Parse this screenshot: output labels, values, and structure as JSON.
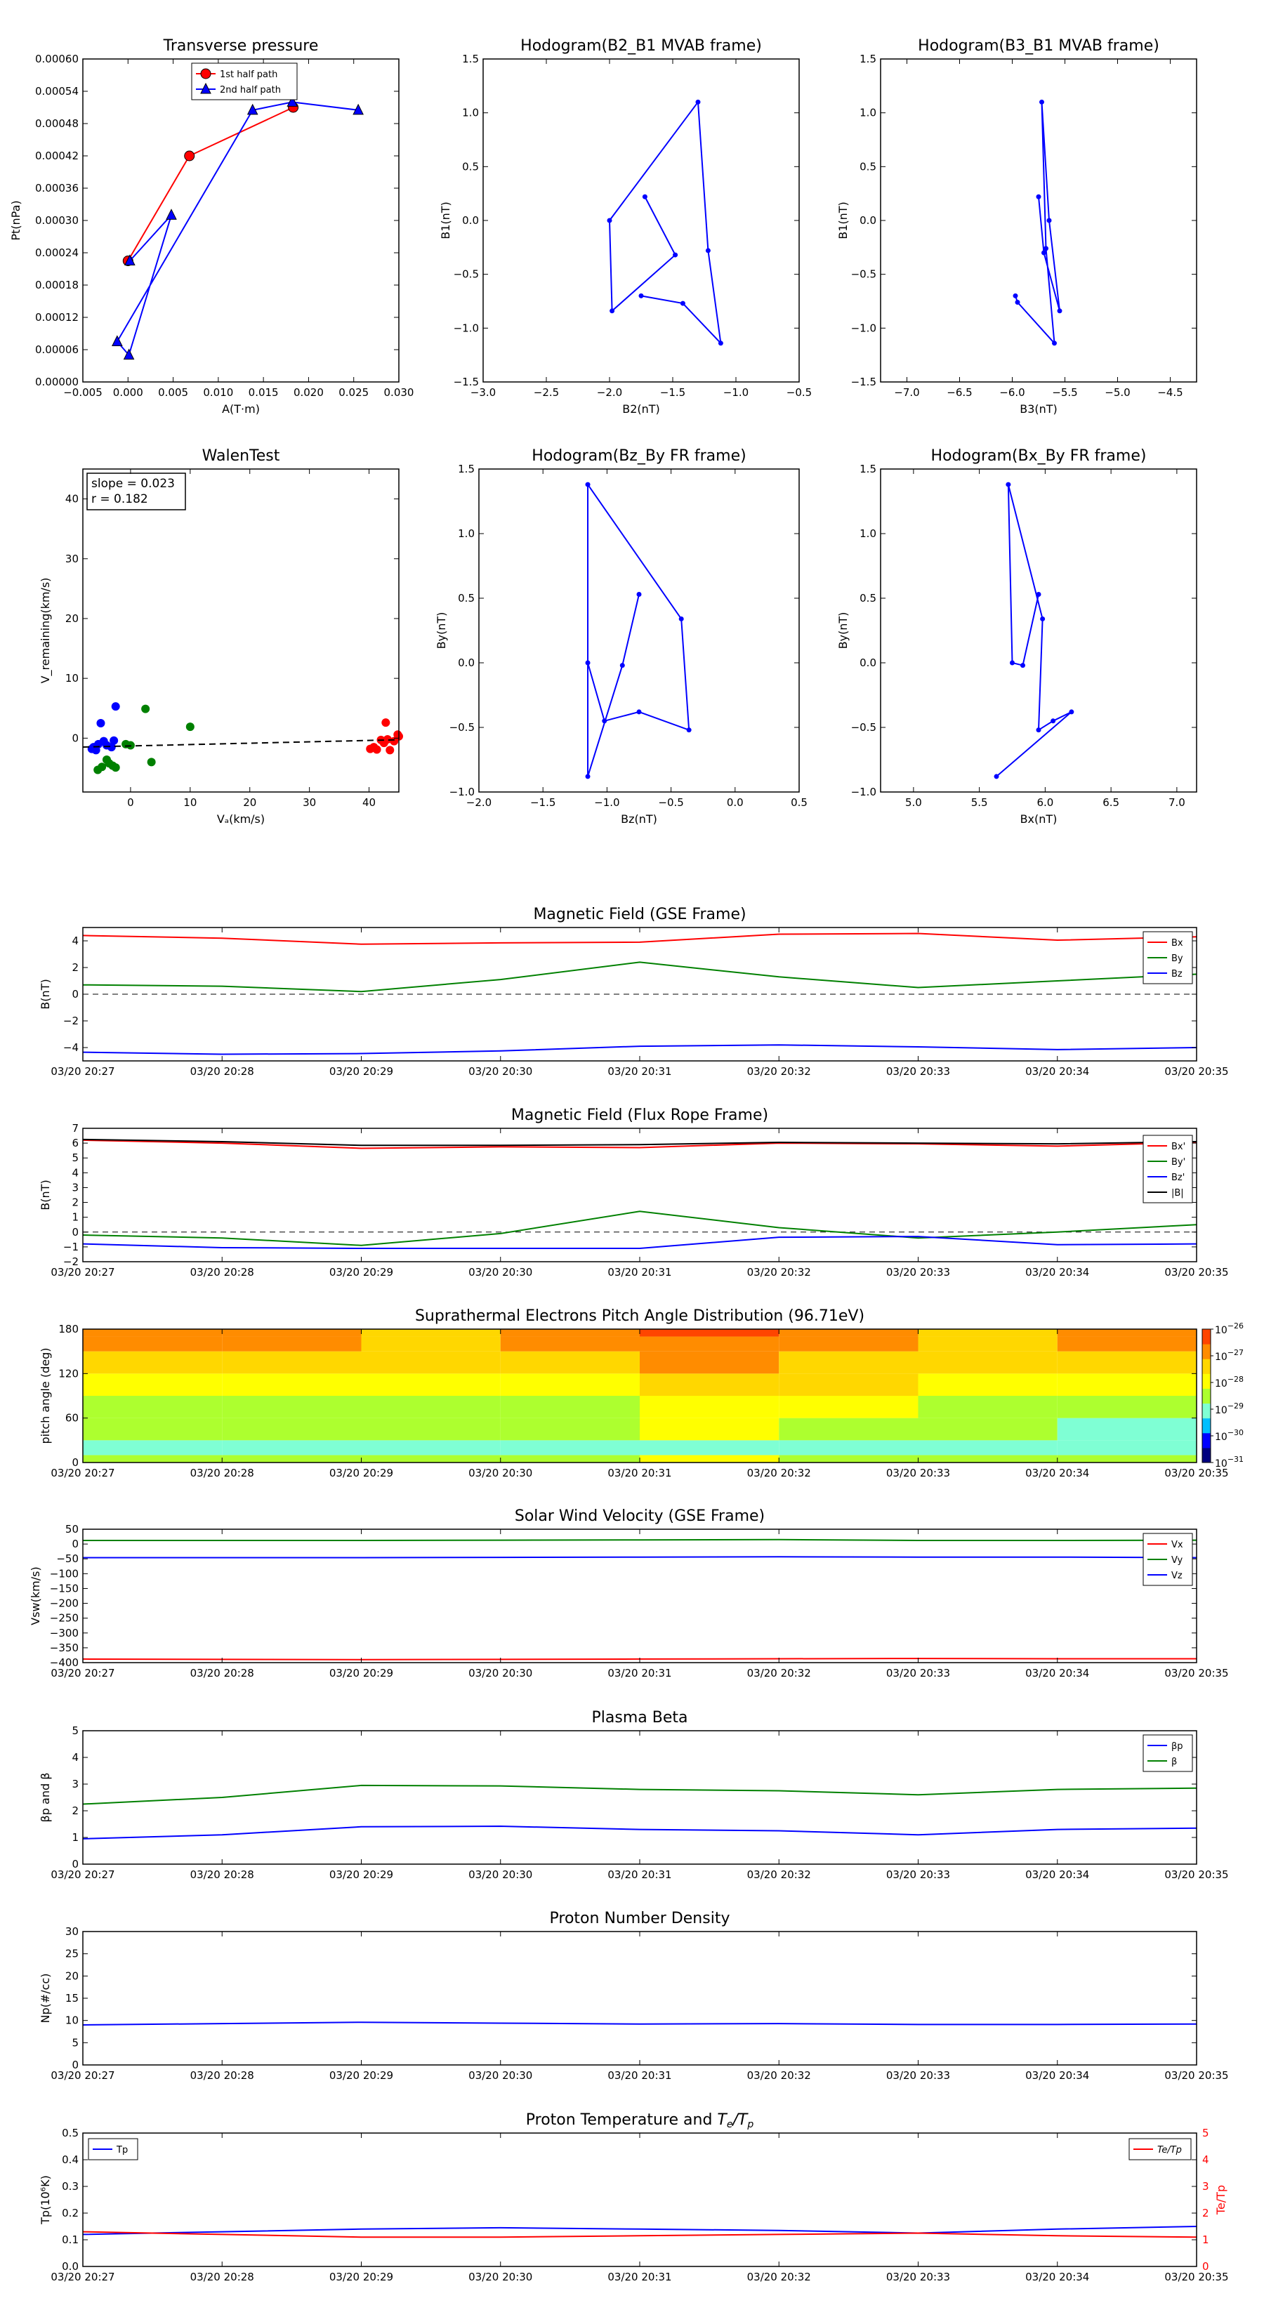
{
  "time_ticks": [
    "03/20 20:27",
    "03/20 20:28",
    "03/20 20:29",
    "03/20 20:30",
    "03/20 20:31",
    "03/20 20:32",
    "03/20 20:33",
    "03/20 20:34",
    "03/20 20:35"
  ],
  "chart_data": [
    {
      "id": "transverse-pressure",
      "type": "line",
      "title": "Transverse pressure",
      "xlabel": "A(T·m)",
      "ylabel": "Pt(nPa)",
      "xlim": [
        -0.005,
        0.03
      ],
      "ylim": [
        0,
        0.0006
      ],
      "xticks": [
        -0.005,
        0,
        0.005,
        0.01,
        0.015,
        0.02,
        0.025,
        0.03
      ],
      "xtick_labels": [
        "−0.005",
        "0.000",
        "0.005",
        "0.010",
        "0.015",
        "0.020",
        "0.025",
        "0.030"
      ],
      "yticks": [
        0,
        6e-05,
        0.00012,
        0.00018,
        0.00024,
        0.0003,
        0.00036,
        0.00042,
        0.00048,
        0.00054,
        0.0006
      ],
      "ytick_labels": [
        "0.00000",
        "0.00006",
        "0.00012",
        "0.00018",
        "0.00024",
        "0.00030",
        "0.00036",
        "0.00042",
        "0.00048",
        "0.00054",
        "0.00060"
      ],
      "legend": "top-center",
      "series": [
        {
          "name": "1st half path",
          "color": "#ff0000",
          "marker": "circle",
          "x": [
            0.0,
            0.0068,
            0.0183
          ],
          "y": [
            0.000225,
            0.00042,
            0.00051
          ]
        },
        {
          "name": "2nd half path",
          "color": "#0000ff",
          "marker": "triangle",
          "x": [
            0.0255,
            0.0182,
            0.0138,
            -0.0012,
            0.0001,
            0.0048,
            0.0002
          ],
          "y": [
            0.000505,
            0.00052,
            0.000505,
            7.5e-05,
            5e-05,
            0.00031,
            0.000225
          ]
        }
      ]
    },
    {
      "id": "hodogram-b2-b1",
      "type": "line",
      "title": "Hodogram(B2_B1 MVAB frame)",
      "xlabel": "B2(nT)",
      "ylabel": "B1(nT)",
      "xlim": [
        -3.0,
        -0.5
      ],
      "ylim": [
        -1.5,
        1.5
      ],
      "xticks": [
        -3.0,
        -2.5,
        -2.0,
        -1.5,
        -1.0,
        -0.5
      ],
      "xtick_labels": [
        "−3.0",
        "−2.5",
        "−2.0",
        "−1.5",
        "−1.0",
        "−0.5"
      ],
      "yticks": [
        -1.5,
        -1.0,
        -0.5,
        0.0,
        0.5,
        1.0,
        1.5
      ],
      "ytick_labels": [
        "−1.5",
        "−1.0",
        "−0.5",
        "0.0",
        "0.5",
        "1.0",
        "1.5"
      ],
      "series": [
        {
          "color": "#0000ff",
          "marker": "dot",
          "x": [
            -1.72,
            -1.48,
            -1.98,
            -2.0,
            -1.3,
            -1.22,
            -1.12,
            -1.42,
            -1.75
          ],
          "y": [
            0.22,
            -0.32,
            -0.84,
            0.0,
            1.1,
            -0.28,
            -1.14,
            -0.77,
            -0.7
          ]
        }
      ]
    },
    {
      "id": "hodogram-b3-b1",
      "type": "line",
      "title": "Hodogram(B3_B1 MVAB frame)",
      "xlabel": "B3(nT)",
      "ylabel": "B1(nT)",
      "xlim": [
        -7.25,
        -4.25
      ],
      "ylim": [
        -1.5,
        1.5
      ],
      "xticks": [
        -7.0,
        -6.5,
        -6.0,
        -5.5,
        -5.0,
        -4.5
      ],
      "xtick_labels": [
        "−7.0",
        "−6.5",
        "−6.0",
        "−5.5",
        "−5.0",
        "−4.5"
      ],
      "yticks": [
        -1.5,
        -1.0,
        -0.5,
        0.0,
        0.5,
        1.0,
        1.5
      ],
      "ytick_labels": [
        "−1.5",
        "−1.0",
        "−0.5",
        "0.0",
        "0.5",
        "1.0",
        "1.5"
      ],
      "series": [
        {
          "color": "#0000ff",
          "marker": "dot",
          "x": [
            -5.75,
            -5.7,
            -5.55,
            -5.65,
            -5.72,
            -5.68,
            -5.6,
            -5.95,
            -5.97
          ],
          "y": [
            0.22,
            -0.3,
            -0.84,
            0.0,
            1.1,
            -0.26,
            -1.14,
            -0.76,
            -0.7
          ]
        }
      ]
    },
    {
      "id": "walen-test",
      "type": "scatter",
      "title": "WalenTest",
      "xlabel": "Vₐ(km/s)",
      "ylabel": "V_remaining(km/s)",
      "xlim": [
        -8,
        45
      ],
      "ylim": [
        -9,
        45
      ],
      "xticks": [
        0,
        10,
        20,
        30,
        40
      ],
      "xtick_labels": [
        "0",
        "10",
        "20",
        "30",
        "40"
      ],
      "yticks": [
        0,
        10,
        20,
        30,
        40
      ],
      "ytick_labels": [
        "0",
        "10",
        "20",
        "30",
        "40"
      ],
      "annotation": [
        "slope = 0.023",
        "r = 0.182"
      ],
      "fit": {
        "slope": 0.023,
        "intercept": -1.3
      },
      "series": [
        {
          "color": "#0000ff",
          "x": [
            -6.5,
            -6.2,
            -5.8,
            -5.4,
            -5.0,
            -4.5,
            -4.0,
            -3.2,
            -2.8,
            -2.5
          ],
          "y": [
            -1.8,
            -1.5,
            -2.0,
            -1.0,
            2.5,
            -0.5,
            -1.2,
            -1.5,
            -0.4,
            5.3
          ]
        },
        {
          "color": "#008000",
          "x": [
            -5.5,
            -4.8,
            -4.0,
            -3.6,
            -3.0,
            -2.5,
            -0.8,
            0.0,
            2.5,
            3.5,
            10.0
          ],
          "y": [
            -5.3,
            -4.8,
            -3.6,
            -4.2,
            -4.6,
            -4.9,
            -1.0,
            -1.2,
            4.9,
            -4.0,
            1.9
          ]
        },
        {
          "color": "#ff0000",
          "x": [
            40.2,
            40.8,
            41.3,
            42.0,
            42.5,
            42.8,
            43.1,
            43.5,
            44.2,
            44.8,
            45.0
          ],
          "y": [
            -1.8,
            -1.5,
            -1.9,
            -0.3,
            -0.8,
            2.6,
            -0.2,
            -2.0,
            -0.5,
            0.6,
            0.3
          ]
        }
      ]
    },
    {
      "id": "hodogram-bz-by",
      "type": "line",
      "title": "Hodogram(Bz_By FR frame)",
      "xlabel": "Bz(nT)",
      "ylabel": "By(nT)",
      "xlim": [
        -2.0,
        0.5
      ],
      "ylim": [
        -1.0,
        1.5
      ],
      "xticks": [
        -2.0,
        -1.5,
        -1.0,
        -0.5,
        0.0,
        0.5
      ],
      "xtick_labels": [
        "−2.0",
        "−1.5",
        "−1.0",
        "−0.5",
        "0.0",
        "0.5"
      ],
      "yticks": [
        -1.0,
        -0.5,
        0.0,
        0.5,
        1.0,
        1.5
      ],
      "ytick_labels": [
        "−1.0",
        "−0.5",
        "0.0",
        "0.5",
        "1.0",
        "1.5"
      ],
      "series": [
        {
          "color": "#0000ff",
          "marker": "dot",
          "x": [
            -0.75,
            -0.88,
            -1.15,
            -1.15,
            -0.42,
            -0.36,
            -0.75,
            -1.02,
            -1.15
          ],
          "y": [
            0.53,
            -0.02,
            -0.88,
            1.38,
            0.34,
            -0.52,
            -0.38,
            -0.45,
            0.0
          ]
        }
      ]
    },
    {
      "id": "hodogram-bx-by",
      "type": "line",
      "title": "Hodogram(Bx_By FR frame)",
      "xlabel": "Bx(nT)",
      "ylabel": "By(nT)",
      "xlim": [
        4.75,
        7.15
      ],
      "ylim": [
        -1.0,
        1.5
      ],
      "xticks": [
        5.0,
        5.5,
        6.0,
        6.5,
        7.0
      ],
      "xtick_labels": [
        "5.0",
        "5.5",
        "6.0",
        "6.5",
        "7.0"
      ],
      "yticks": [
        -1.0,
        -0.5,
        0.0,
        0.5,
        1.0,
        1.5
      ],
      "ytick_labels": [
        "−1.0",
        "−0.5",
        "0.0",
        "0.5",
        "1.0",
        "1.5"
      ],
      "series": [
        {
          "color": "#0000ff",
          "marker": "dot",
          "x": [
            5.95,
            5.83,
            5.75,
            5.72,
            5.98,
            5.95,
            6.06,
            6.2,
            5.63
          ],
          "y": [
            0.53,
            -0.02,
            0.0,
            1.38,
            0.34,
            -0.52,
            -0.45,
            -0.38,
            -0.88
          ]
        }
      ]
    },
    {
      "id": "magnetic-field-gse",
      "type": "line",
      "title": "Magnetic Field (GSE Frame)",
      "ylabel": "B(nT)",
      "xlim": [
        0,
        8
      ],
      "ylim": [
        -5,
        5
      ],
      "yticks": [
        -4,
        -2,
        0,
        2,
        4
      ],
      "ytick_labels": [
        "−4",
        "−2",
        "0",
        "2",
        "4"
      ],
      "zero_line": true,
      "legend": "top-right",
      "series": [
        {
          "name": "Bx",
          "color": "#ff0000",
          "y": [
            4.4,
            4.2,
            3.75,
            3.85,
            3.9,
            4.5,
            4.55,
            4.05,
            4.3
          ]
        },
        {
          "name": "By",
          "color": "#008000",
          "y": [
            0.7,
            0.6,
            0.2,
            1.1,
            2.4,
            1.3,
            0.5,
            1.0,
            1.5
          ]
        },
        {
          "name": "Bz",
          "color": "#0000ff",
          "y": [
            -4.35,
            -4.5,
            -4.45,
            -4.25,
            -3.9,
            -3.8,
            -3.95,
            -4.15,
            -4.0
          ]
        }
      ]
    },
    {
      "id": "magnetic-field-fr",
      "type": "line",
      "title": "Magnetic Field (Flux Rope Frame)",
      "ylabel": "B(nT)",
      "xlim": [
        0,
        8
      ],
      "ylim": [
        -2,
        7
      ],
      "yticks": [
        -2,
        -1,
        0,
        1,
        2,
        3,
        4,
        5,
        6,
        7
      ],
      "ytick_labels": [
        "−2",
        "−1",
        "0",
        "1",
        "2",
        "3",
        "4",
        "5",
        "6",
        "7"
      ],
      "zero_line": true,
      "legend": "right",
      "series": [
        {
          "name": "Bx'",
          "color": "#ff0000",
          "y": [
            6.2,
            6.0,
            5.65,
            5.75,
            5.7,
            6.0,
            5.95,
            5.8,
            6.05
          ]
        },
        {
          "name": "By'",
          "color": "#008000",
          "y": [
            -0.2,
            -0.4,
            -0.9,
            -0.1,
            1.4,
            0.3,
            -0.4,
            0.0,
            0.5
          ]
        },
        {
          "name": "Bz'",
          "color": "#0000ff",
          "y": [
            -0.8,
            -1.05,
            -1.1,
            -1.1,
            -1.1,
            -0.35,
            -0.3,
            -0.85,
            -0.8
          ]
        },
        {
          "name": "|B|",
          "color": "#000000",
          "y": [
            6.25,
            6.1,
            5.85,
            5.85,
            5.9,
            6.05,
            6.0,
            5.95,
            6.1
          ]
        }
      ]
    },
    {
      "id": "pitch-angle-distribution",
      "type": "heatmap",
      "title": "Suprathermal Electrons Pitch Angle Distribution (96.71eV)",
      "ylabel": "pitch angle (deg)",
      "xlim": [
        0,
        8
      ],
      "ylim": [
        0,
        180
      ],
      "yticks": [
        0,
        60,
        120,
        180
      ],
      "ytick_labels": [
        "0",
        "60",
        "120",
        "180"
      ],
      "colorbar": {
        "ticks": [
          "10",
          "10",
          "10",
          "10",
          "10",
          "10"
        ],
        "exponents": [
          "−26",
          "−27",
          "−28",
          "−29",
          "−30",
          "−31"
        ]
      },
      "bands": [
        {
          "y0": 0,
          "y1": 10,
          "cells": [
            4,
            4,
            4,
            4,
            5,
            4,
            4,
            4,
            4
          ]
        },
        {
          "y0": 10,
          "y1": 30,
          "cells": [
            3,
            3,
            3,
            3,
            3,
            3,
            3,
            3,
            3
          ]
        },
        {
          "y0": 30,
          "y1": 60,
          "cells": [
            4,
            4,
            4,
            4,
            5,
            4,
            4,
            3,
            4
          ]
        },
        {
          "y0": 60,
          "y1": 90,
          "cells": [
            4,
            4,
            4,
            4,
            5,
            5,
            4,
            4,
            4
          ]
        },
        {
          "y0": 90,
          "y1": 120,
          "cells": [
            5,
            5,
            5,
            5,
            6,
            6,
            5,
            5,
            5
          ]
        },
        {
          "y0": 120,
          "y1": 150,
          "cells": [
            6,
            6,
            6,
            6,
            7,
            6,
            6,
            6,
            6
          ]
        },
        {
          "y0": 150,
          "y1": 170,
          "cells": [
            7,
            7,
            6,
            7,
            7,
            7,
            6,
            7,
            7
          ]
        },
        {
          "y0": 170,
          "y1": 180,
          "cells": [
            7,
            7,
            6,
            7,
            8,
            7,
            6,
            7,
            7
          ]
        }
      ]
    },
    {
      "id": "solar-wind-velocity",
      "type": "line",
      "title": "Solar Wind Velocity (GSE Frame)",
      "ylabel": "Vsw(km/s)",
      "xlim": [
        0,
        8
      ],
      "ylim": [
        -400,
        50
      ],
      "yticks": [
        -400,
        -350,
        -300,
        -250,
        -200,
        -150,
        -100,
        -50,
        0,
        50
      ],
      "ytick_labels": [
        "−400",
        "−350",
        "−300",
        "−250",
        "−200",
        "−150",
        "−100",
        "−50",
        "0",
        "50"
      ],
      "legend": "top-right",
      "series": [
        {
          "name": "Vx",
          "color": "#ff0000",
          "y": [
            -388,
            -389,
            -390,
            -389,
            -388,
            -387,
            -386,
            -387,
            -387
          ]
        },
        {
          "name": "Vy",
          "color": "#008000",
          "y": [
            12,
            12,
            12,
            13,
            14,
            15,
            12,
            12,
            13
          ]
        },
        {
          "name": "Vz",
          "color": "#0000ff",
          "y": [
            -46,
            -46,
            -46,
            -45,
            -44,
            -43,
            -44,
            -44,
            -46
          ]
        }
      ]
    },
    {
      "id": "plasma-beta",
      "type": "line",
      "title": "Plasma Beta",
      "ylabel": "βp and β",
      "xlim": [
        0,
        8
      ],
      "ylim": [
        0,
        5
      ],
      "yticks": [
        0,
        1,
        2,
        3,
        4,
        5
      ],
      "ytick_labels": [
        "0",
        "1",
        "2",
        "3",
        "4",
        "5"
      ],
      "legend": "top-right",
      "series": [
        {
          "name": "βp",
          "color": "#0000ff",
          "y": [
            0.95,
            1.1,
            1.4,
            1.42,
            1.3,
            1.25,
            1.1,
            1.3,
            1.35
          ]
        },
        {
          "name": "β",
          "color": "#008000",
          "y": [
            2.25,
            2.5,
            2.95,
            2.93,
            2.8,
            2.75,
            2.6,
            2.8,
            2.85
          ]
        }
      ]
    },
    {
      "id": "proton-number-density",
      "type": "line",
      "title": "Proton Number Density",
      "ylabel": "Np(#/cc)",
      "xlim": [
        0,
        8
      ],
      "ylim": [
        0,
        30
      ],
      "yticks": [
        0,
        5,
        10,
        15,
        20,
        25,
        30
      ],
      "ytick_labels": [
        "0",
        "5",
        "10",
        "15",
        "20",
        "25",
        "30"
      ],
      "series": [
        {
          "color": "#0000ff",
          "y": [
            9.0,
            9.3,
            9.6,
            9.4,
            9.2,
            9.3,
            9.1,
            9.1,
            9.2
          ]
        }
      ]
    },
    {
      "id": "proton-temperature",
      "type": "line",
      "title": "Proton Temperature and Te/Tp",
      "ylabel": "Tp(10⁶K)",
      "ylabel_right": "Te/Tp",
      "xlim": [
        0,
        8
      ],
      "ylim": [
        0,
        0.5
      ],
      "ylim_right": [
        0,
        5
      ],
      "yticks": [
        0,
        0.1,
        0.2,
        0.3,
        0.4,
        0.5
      ],
      "ytick_labels": [
        "0.0",
        "0.1",
        "0.2",
        "0.3",
        "0.4",
        "0.5"
      ],
      "yticks_right": [
        0,
        1,
        2,
        3,
        4,
        5
      ],
      "ytick_labels_right": [
        "0",
        "1",
        "2",
        "3",
        "4",
        "5"
      ],
      "series": [
        {
          "name": "Tp",
          "color": "#0000ff",
          "y": [
            0.12,
            0.13,
            0.14,
            0.145,
            0.14,
            0.135,
            0.125,
            0.14,
            0.15
          ]
        },
        {
          "name": "Te/Tp",
          "color": "#ff0000",
          "axis": "right",
          "y": [
            1.3,
            1.2,
            1.1,
            1.1,
            1.15,
            1.2,
            1.25,
            1.15,
            1.1
          ]
        }
      ]
    }
  ]
}
